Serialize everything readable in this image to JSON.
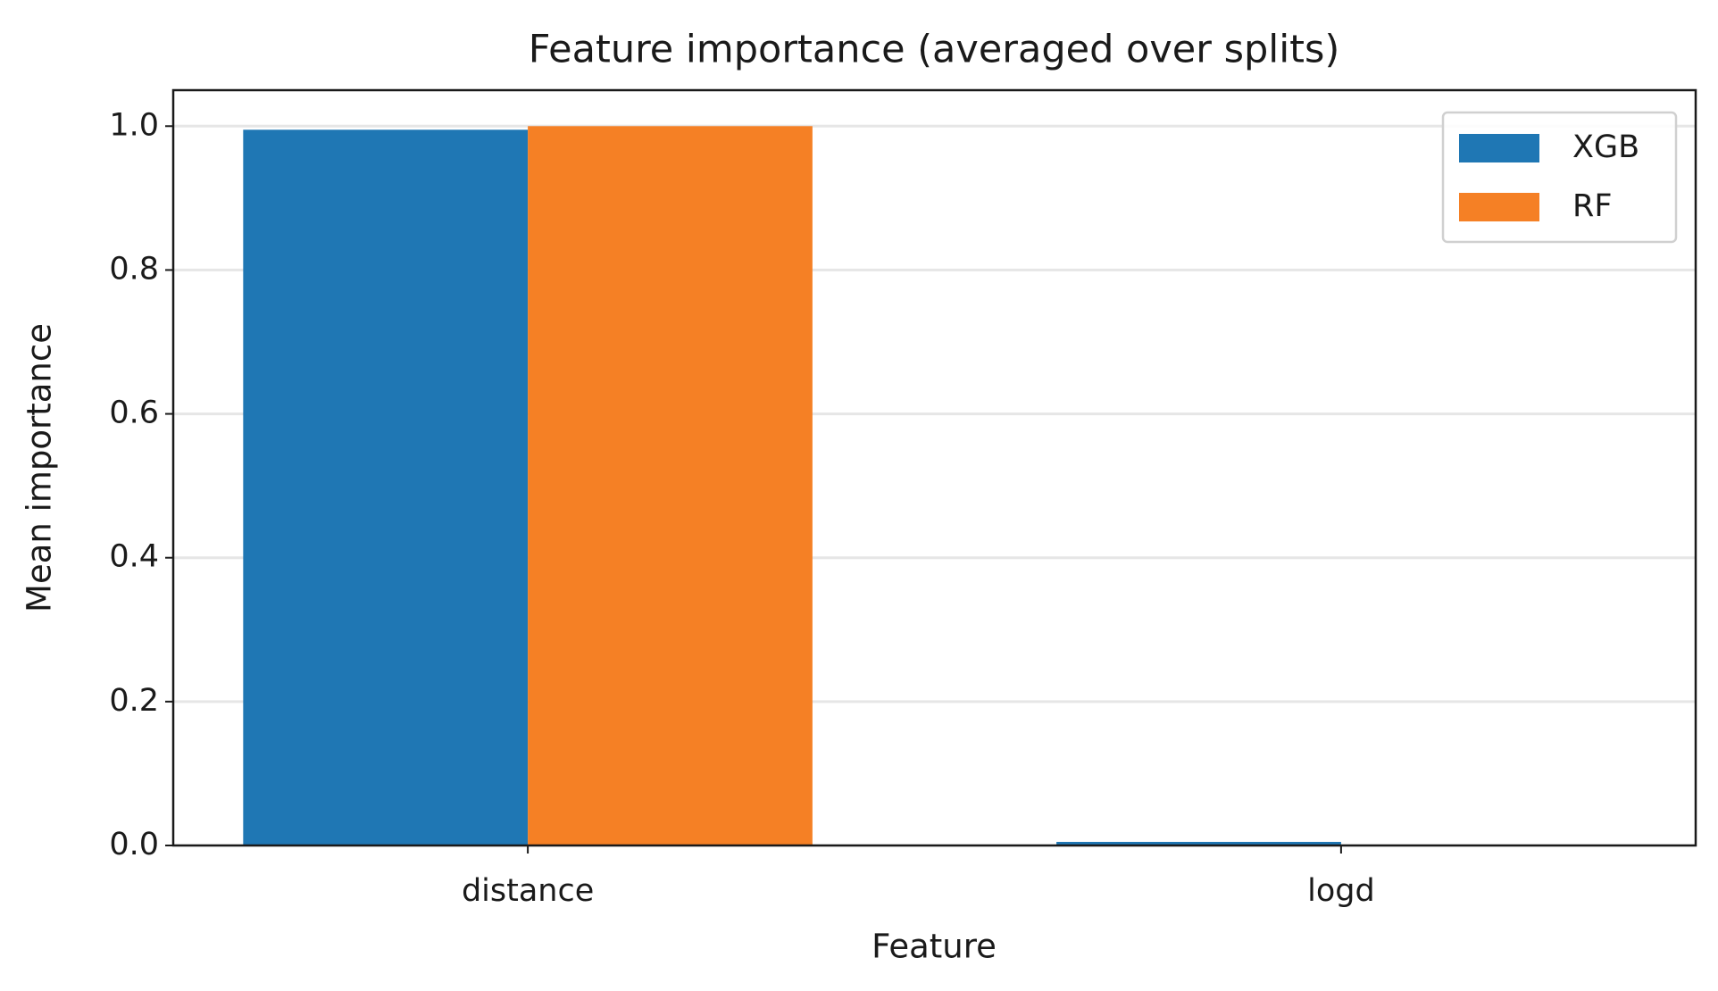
{
  "chart_data": {
    "type": "bar",
    "title": "Feature importance (averaged over splits)",
    "x_label": "Feature",
    "y_label": "Mean importance",
    "categories": [
      "distance",
      "logd"
    ],
    "series": [
      {
        "name": "XGB",
        "color": "#1f77b4",
        "values": [
          0.995,
          0.005
        ]
      },
      {
        "name": "RF",
        "color": "#f58025",
        "values": [
          1.0,
          0.0
        ]
      }
    ],
    "ylim": [
      0,
      1.05
    ],
    "yticks": [
      {
        "value": 0,
        "label": "0.0"
      },
      {
        "value": 0.2,
        "label": "0.2"
      },
      {
        "value": 0.4,
        "label": "0.4"
      },
      {
        "value": 0.6,
        "label": "0.6"
      },
      {
        "value": 0.8,
        "label": "0.8"
      },
      {
        "value": 1.0,
        "label": "1.0"
      }
    ],
    "grid": true,
    "legend": "upper right"
  }
}
